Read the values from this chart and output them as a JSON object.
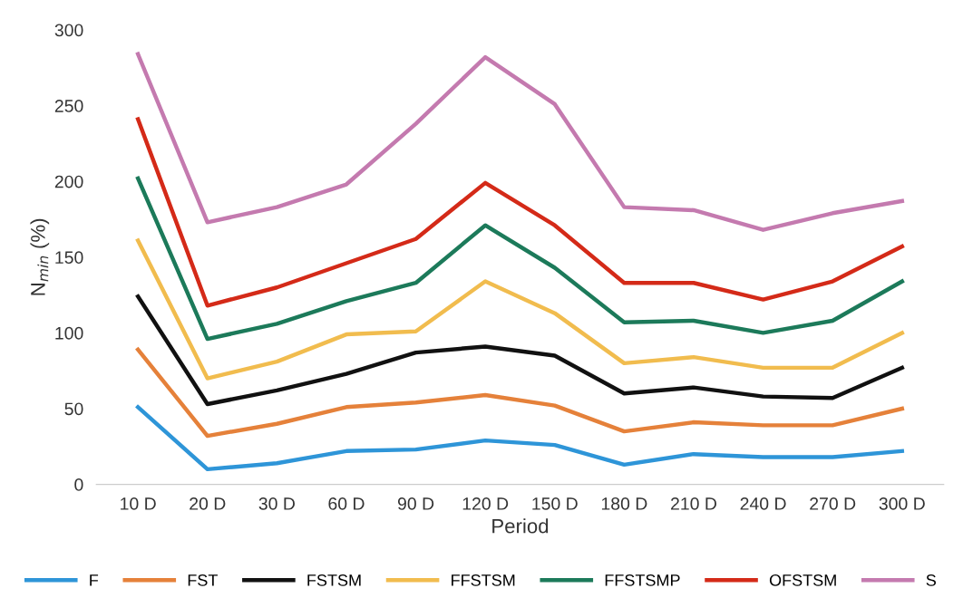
{
  "chart_data": {
    "type": "line",
    "xlabel": "Period",
    "ylabel": "N$_{min}$ (%)",
    "categories": [
      "10 D",
      "20 D",
      "30 D",
      "60 D",
      "90 D",
      "120 D",
      "150 D",
      "180 D",
      "210 D",
      "240 D",
      "270 D",
      "300 D"
    ],
    "ylim": [
      0,
      300
    ],
    "yticks": [
      0,
      50,
      100,
      150,
      200,
      250,
      300
    ],
    "grid": false,
    "legend": "bottom",
    "marker": "none",
    "line_style": "solid",
    "series": [
      {
        "name": "F",
        "color": "#2e95d8",
        "values": [
          51,
          10,
          14,
          22,
          23,
          29,
          26,
          13,
          20,
          18,
          18,
          22
        ]
      },
      {
        "name": "FST",
        "color": "#e5813a",
        "values": [
          89,
          32,
          40,
          51,
          54,
          59,
          52,
          35,
          41,
          39,
          39,
          50
        ]
      },
      {
        "name": "FSTSM",
        "color": "#111111",
        "values": [
          124,
          53,
          62,
          73,
          87,
          91,
          85,
          60,
          64,
          58,
          57,
          77
        ]
      },
      {
        "name": "FFSTSM",
        "color": "#f1bc4e",
        "values": [
          161,
          70,
          81,
          99,
          101,
          134,
          113,
          80,
          84,
          77,
          77,
          100
        ]
      },
      {
        "name": "FFSTSMP",
        "color": "#1c7a5a",
        "values": [
          202,
          96,
          106,
          121,
          133,
          171,
          143,
          107,
          108,
          100,
          108,
          134
        ]
      },
      {
        "name": "OFSTSM",
        "color": "#d42a18",
        "values": [
          241,
          118,
          130,
          146,
          162,
          199,
          171,
          133,
          133,
          122,
          134,
          157
        ]
      },
      {
        "name": "S",
        "color": "#c47aaf",
        "values": [
          284,
          173,
          183,
          198,
          238,
          282,
          251,
          183,
          181,
          168,
          179,
          187
        ]
      }
    ]
  }
}
